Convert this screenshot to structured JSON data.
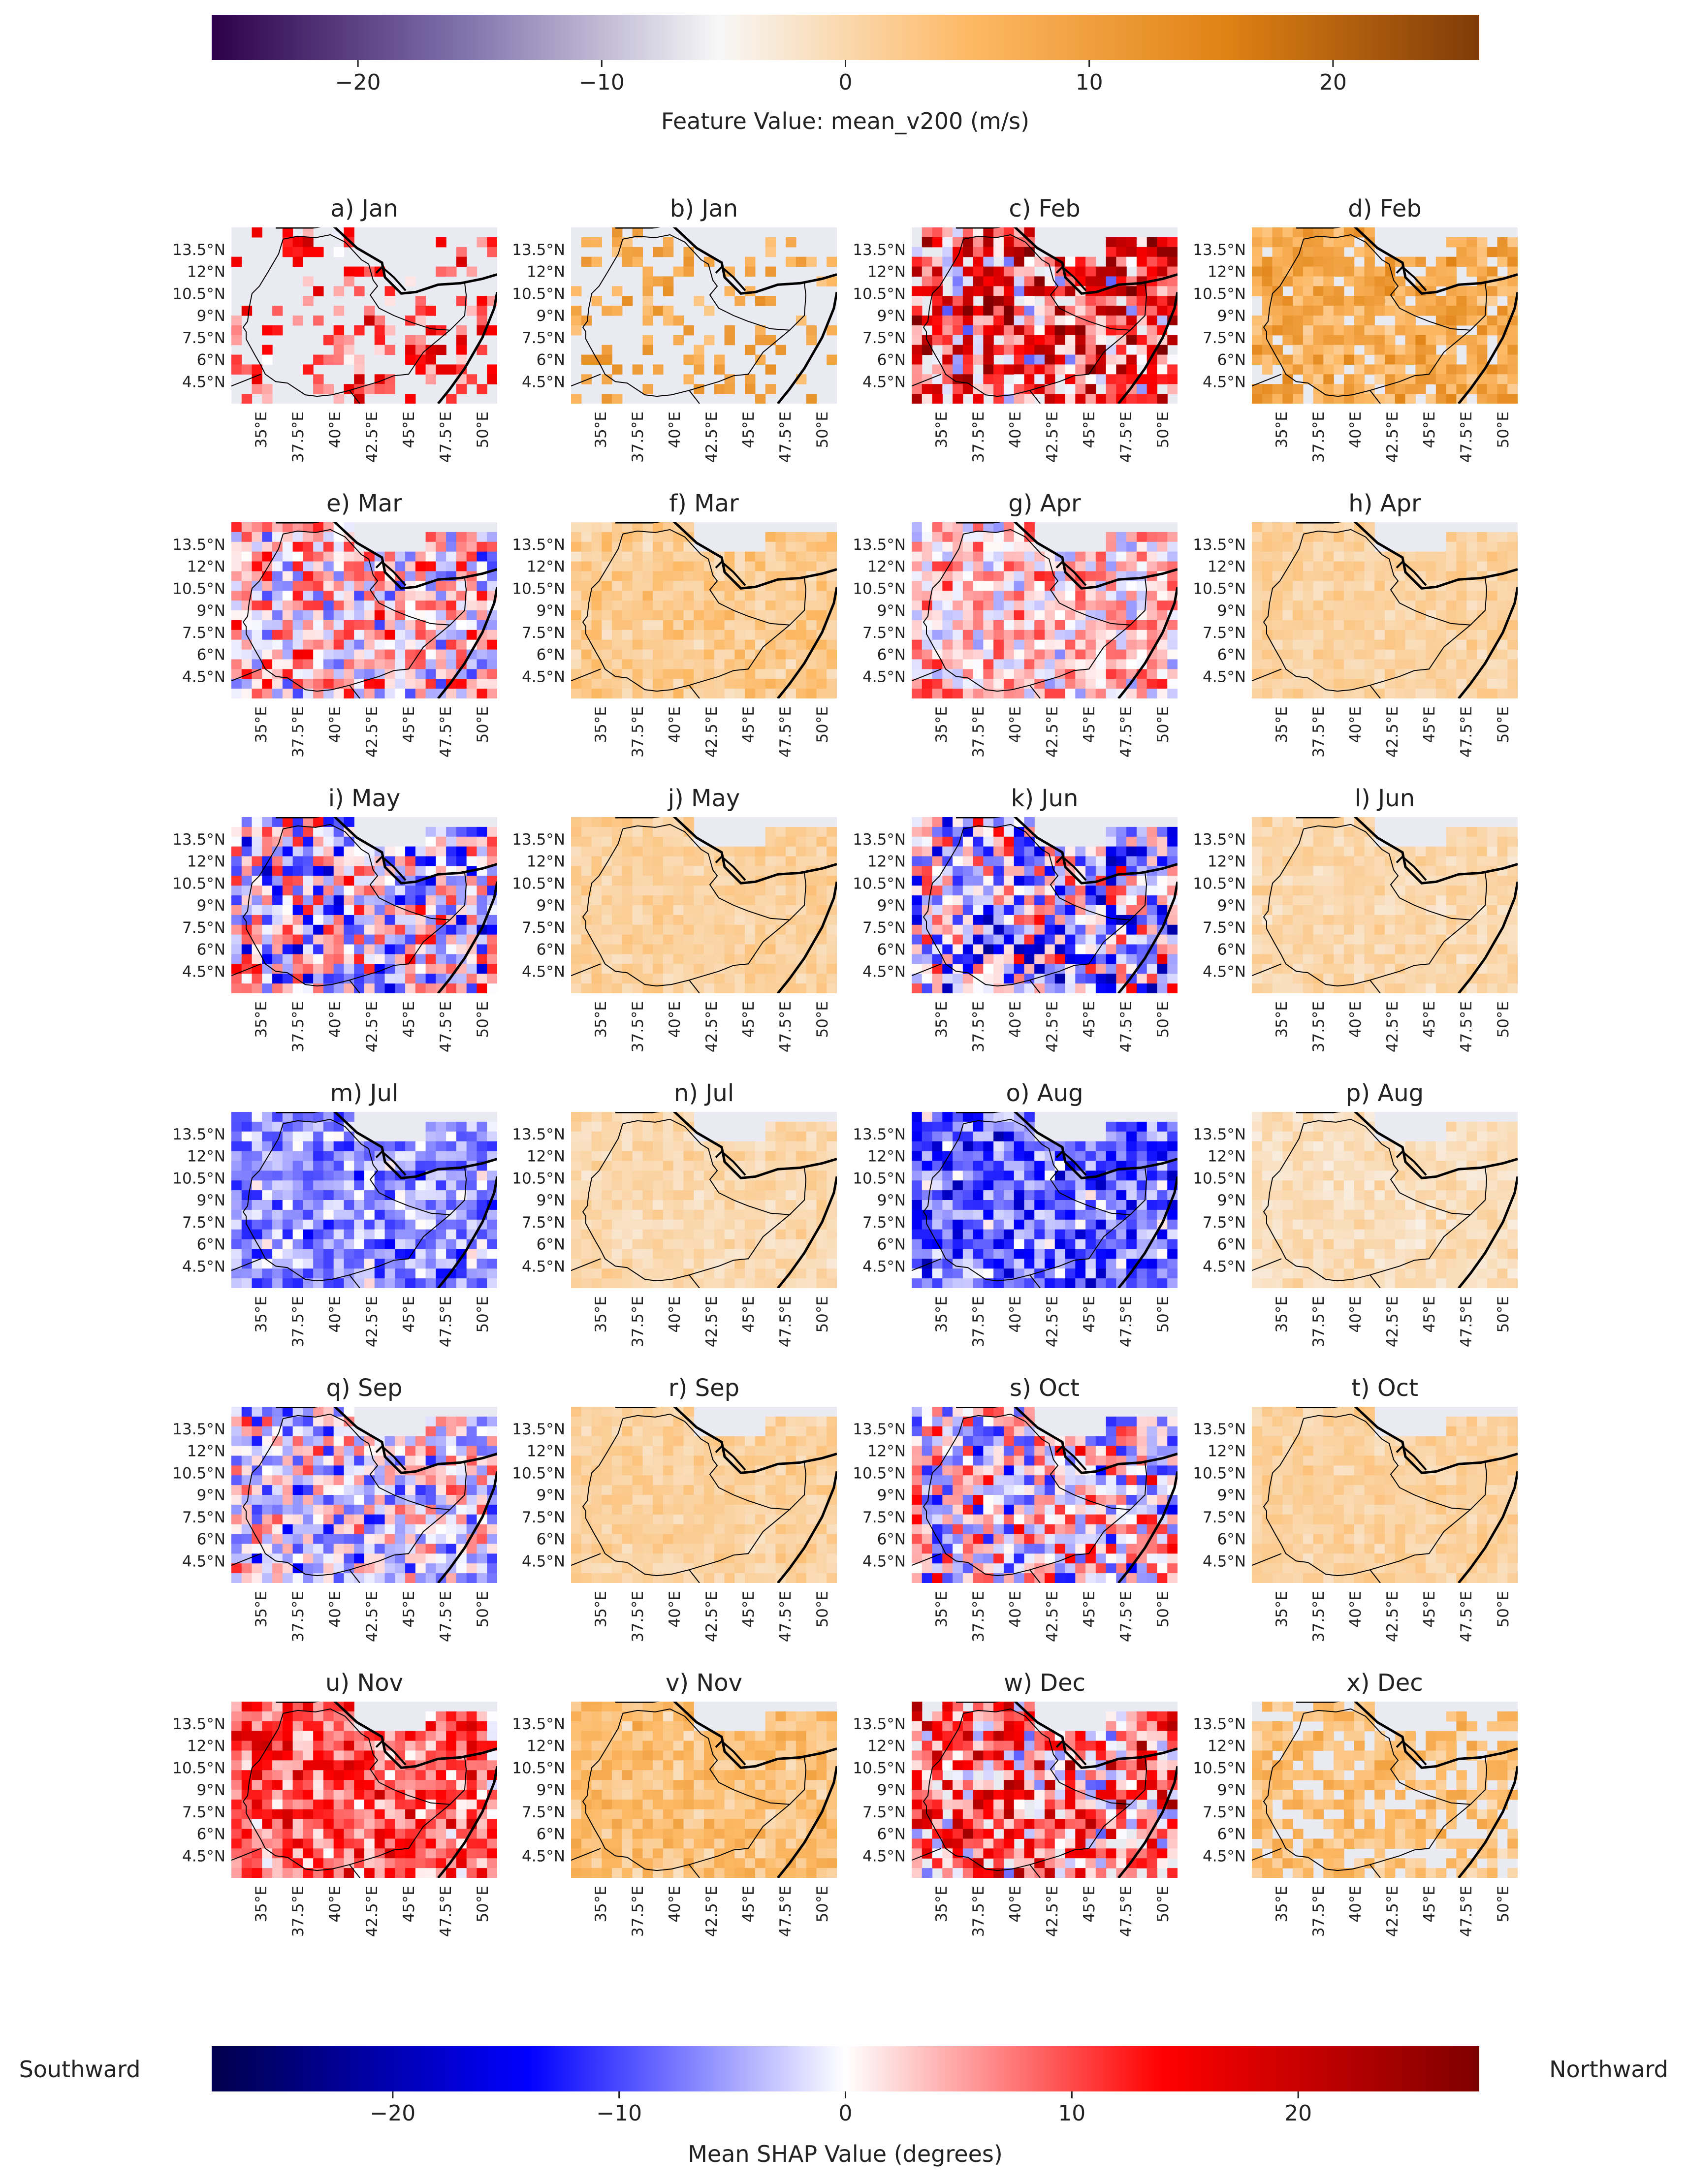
{
  "colorbar_top": {
    "label": "Feature Value: mean_v200 (m/s)",
    "ticks": [
      "−20",
      "−10",
      "0",
      "10",
      "20"
    ],
    "tick_values": [
      -20,
      -10,
      0,
      10,
      20
    ],
    "range": [
      -26,
      26
    ],
    "colormap": [
      "#2d004b",
      "#8073ac",
      "#f7f7f7",
      "#fdb863",
      "#e08214",
      "#7f3b08"
    ]
  },
  "colorbar_bottom": {
    "label": "Mean SHAP Value (degrees)",
    "ticks": [
      "−20",
      "−10",
      "0",
      "10",
      "20"
    ],
    "tick_values": [
      -20,
      -10,
      0,
      10,
      20
    ],
    "range": [
      -28,
      28
    ],
    "left_label": "Southward",
    "right_label": "Northward",
    "colormap": [
      "#00004c",
      "#0000ff",
      "#ffffff",
      "#ff0000",
      "#7f0000"
    ]
  },
  "chart_data": {
    "type": "heatmap",
    "lat_ticks": [
      "13.5°N",
      "12°N",
      "10.5°N",
      "9°N",
      "7.5°N",
      "6°N",
      "4.5°N"
    ],
    "lon_ticks": [
      "35°E",
      "37.5°E",
      "40°E",
      "42.5°E",
      "45°E",
      "47.5°E",
      "50°E"
    ],
    "lat_range": [
      3.0,
      15.0
    ],
    "lon_range": [
      33.0,
      51.0
    ],
    "panels": [
      {
        "title": "a) Jan",
        "kind": "shap",
        "bias": 10,
        "amp": 8,
        "coverage": 0.3
      },
      {
        "title": "b) Jan",
        "kind": "feature",
        "bias": 8,
        "amp": 5,
        "coverage": 0.28
      },
      {
        "title": "c) Feb",
        "kind": "shap",
        "bias": 11,
        "amp": 14,
        "coverage": 0.92
      },
      {
        "title": "d) Feb",
        "kind": "feature",
        "bias": 8,
        "amp": 5,
        "coverage": 0.85
      },
      {
        "title": "e) Mar",
        "kind": "shap",
        "bias": 2,
        "amp": 10,
        "coverage": 1.0
      },
      {
        "title": "f) Mar",
        "kind": "feature",
        "bias": 2,
        "amp": 3,
        "coverage": 1.0
      },
      {
        "title": "g) Apr",
        "kind": "shap",
        "bias": 3,
        "amp": 7,
        "coverage": 1.0
      },
      {
        "title": "h) Apr",
        "kind": "feature",
        "bias": 1,
        "amp": 2,
        "coverage": 1.0
      },
      {
        "title": "i) May",
        "kind": "shap",
        "bias": -2,
        "amp": 12,
        "coverage": 1.0
      },
      {
        "title": "j) May",
        "kind": "feature",
        "bias": 1,
        "amp": 2,
        "coverage": 1.0
      },
      {
        "title": "k) Jun",
        "kind": "shap",
        "bias": -3,
        "amp": 13,
        "coverage": 1.0
      },
      {
        "title": "l) Jun",
        "kind": "feature",
        "bias": 0,
        "amp": 2,
        "coverage": 1.0
      },
      {
        "title": "m) Jul",
        "kind": "shap",
        "bias": -6,
        "amp": 6,
        "coverage": 1.0
      },
      {
        "title": "n) Jul",
        "kind": "feature",
        "bias": 0,
        "amp": 2,
        "coverage": 1.0
      },
      {
        "title": "o) Aug",
        "kind": "shap",
        "bias": -9,
        "amp": 8,
        "coverage": 1.0
      },
      {
        "title": "p) Aug",
        "kind": "feature",
        "bias": -1,
        "amp": 2,
        "coverage": 1.0
      },
      {
        "title": "q) Sep",
        "kind": "shap",
        "bias": -1,
        "amp": 9,
        "coverage": 1.0
      },
      {
        "title": "r) Sep",
        "kind": "feature",
        "bias": 1,
        "amp": 2,
        "coverage": 1.0
      },
      {
        "title": "s) Oct",
        "kind": "shap",
        "bias": 0,
        "amp": 11,
        "coverage": 1.0
      },
      {
        "title": "t) Oct",
        "kind": "feature",
        "bias": 1,
        "amp": 2,
        "coverage": 1.0
      },
      {
        "title": "u) Nov",
        "kind": "shap",
        "bias": 9,
        "amp": 8,
        "coverage": 1.0
      },
      {
        "title": "v) Nov",
        "kind": "feature",
        "bias": 4,
        "amp": 4,
        "coverage": 1.0
      },
      {
        "title": "w) Dec",
        "kind": "shap",
        "bias": 8,
        "amp": 12,
        "coverage": 0.9
      },
      {
        "title": "x) Dec",
        "kind": "feature",
        "bias": 4,
        "amp": 4,
        "coverage": 0.7
      }
    ]
  }
}
